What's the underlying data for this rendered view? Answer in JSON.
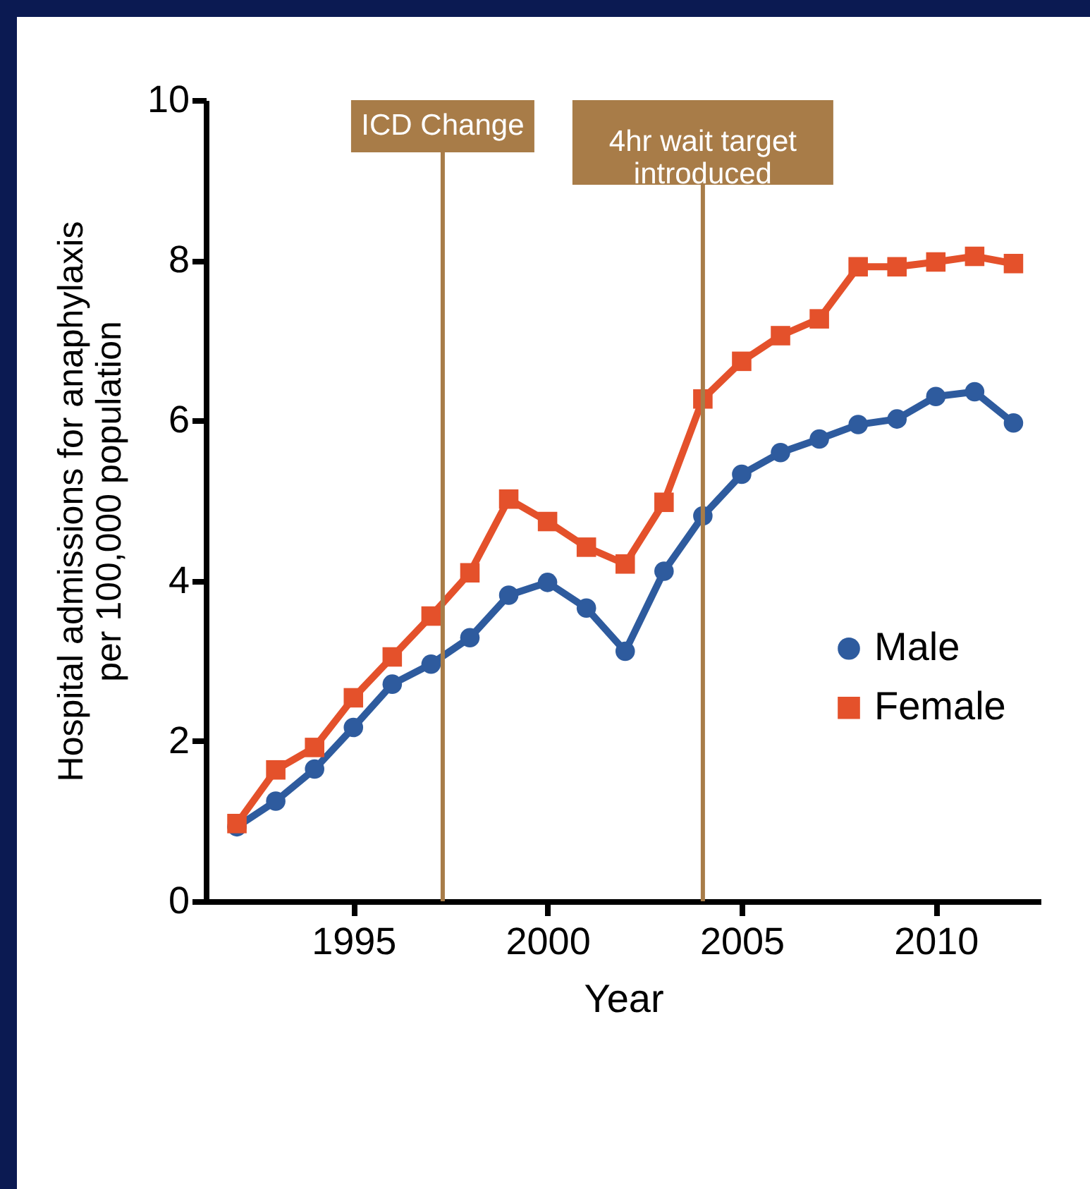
{
  "chart_data": {
    "type": "line",
    "xlabel": "Year",
    "ylabel": "Hospital admissions for anaphylaxis per 100,000 population",
    "x": [
      1992,
      1993,
      1994,
      1995,
      1996,
      1997,
      1998,
      1999,
      2000,
      2001,
      2002,
      2003,
      2004,
      2005,
      2006,
      2007,
      2008,
      2009,
      2010,
      2011,
      2012
    ],
    "series": [
      {
        "name": "Male",
        "color": "#2e5b9e",
        "marker": "circle",
        "values": [
          0.93,
          1.25,
          1.65,
          2.17,
          2.71,
          2.96,
          3.29,
          3.82,
          3.98,
          3.66,
          3.12,
          4.12,
          4.81,
          5.33,
          5.6,
          5.77,
          5.95,
          6.02,
          6.3,
          6.36,
          5.97
        ]
      },
      {
        "name": "Female",
        "color": "#e4512b",
        "marker": "square",
        "values": [
          0.97,
          1.64,
          1.92,
          2.54,
          3.05,
          3.56,
          4.1,
          5.02,
          4.74,
          4.42,
          4.21,
          4.98,
          6.27,
          6.74,
          7.06,
          7.27,
          7.92,
          7.92,
          7.98,
          8.05,
          7.96
        ]
      }
    ],
    "xlim": [
      1991.2,
      2012.7
    ],
    "xticks": [
      1995,
      2000,
      2005,
      2010
    ],
    "ylim": [
      0,
      10
    ],
    "yticks": [
      0,
      2,
      4,
      6,
      8,
      10
    ],
    "ref_lines": [
      {
        "axis": "x",
        "value": 1997.3,
        "label": "ICD Change",
        "color": "#a87c48"
      },
      {
        "axis": "x",
        "value": 2004,
        "label": "4hr wait target introduced",
        "color": "#a87c48"
      }
    ],
    "grid": false,
    "legend": "right",
    "line_style": "solid"
  }
}
